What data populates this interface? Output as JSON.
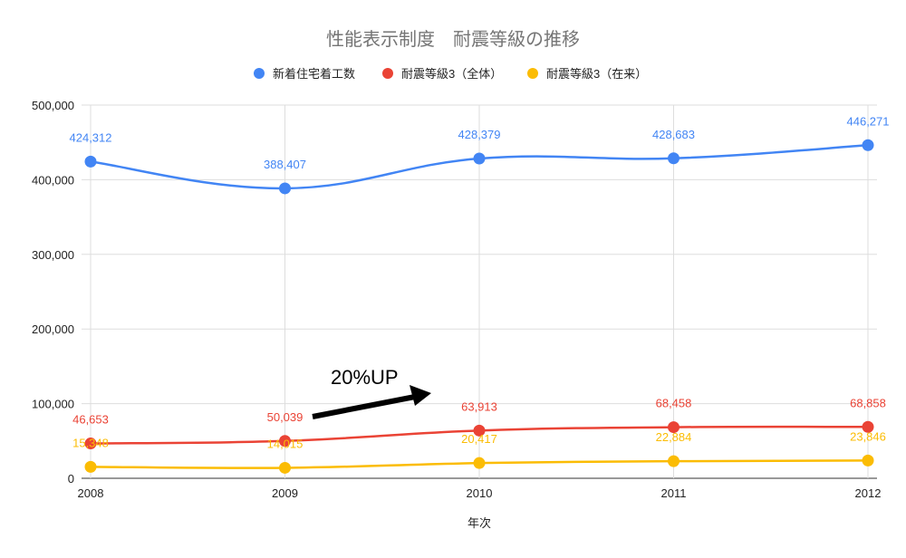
{
  "chart_data": {
    "type": "line",
    "title": "性能表示制度　耐震等級の推移",
    "xlabel": "年次",
    "ylabel": "",
    "categories": [
      "2008",
      "2009",
      "2010",
      "2011",
      "2012"
    ],
    "ylim": [
      0,
      500000
    ],
    "yticks": [
      0,
      100000,
      200000,
      300000,
      400000,
      500000
    ],
    "ytick_labels": [
      "0",
      "100,000",
      "200,000",
      "300,000",
      "400,000",
      "500,000"
    ],
    "grid": true,
    "legend_position": "top",
    "smooth": true,
    "series": [
      {
        "name": "新着住宅着工数",
        "color": "#4285f4",
        "values": [
          424312,
          388407,
          428379,
          428683,
          446271
        ],
        "labels": [
          "424,312",
          "388,407",
          "428,379",
          "428,683",
          "446,271"
        ]
      },
      {
        "name": "耐震等級3（全体）",
        "color": "#ea4335",
        "values": [
          46653,
          50039,
          63913,
          68458,
          68858
        ],
        "labels": [
          "46,653",
          "50,039",
          "63,913",
          "68,458",
          "68,858"
        ]
      },
      {
        "name": "耐震等級3（在来）",
        "color": "#fbbc04",
        "values": [
          15348,
          14015,
          20417,
          22884,
          23846
        ],
        "labels": [
          "15,348",
          "14,015",
          "20,417",
          "22,884",
          "23,846"
        ]
      }
    ],
    "annotations": [
      {
        "text": "20%UP",
        "type": "arrow",
        "from_category": "2009",
        "to_category": "2010"
      }
    ]
  }
}
